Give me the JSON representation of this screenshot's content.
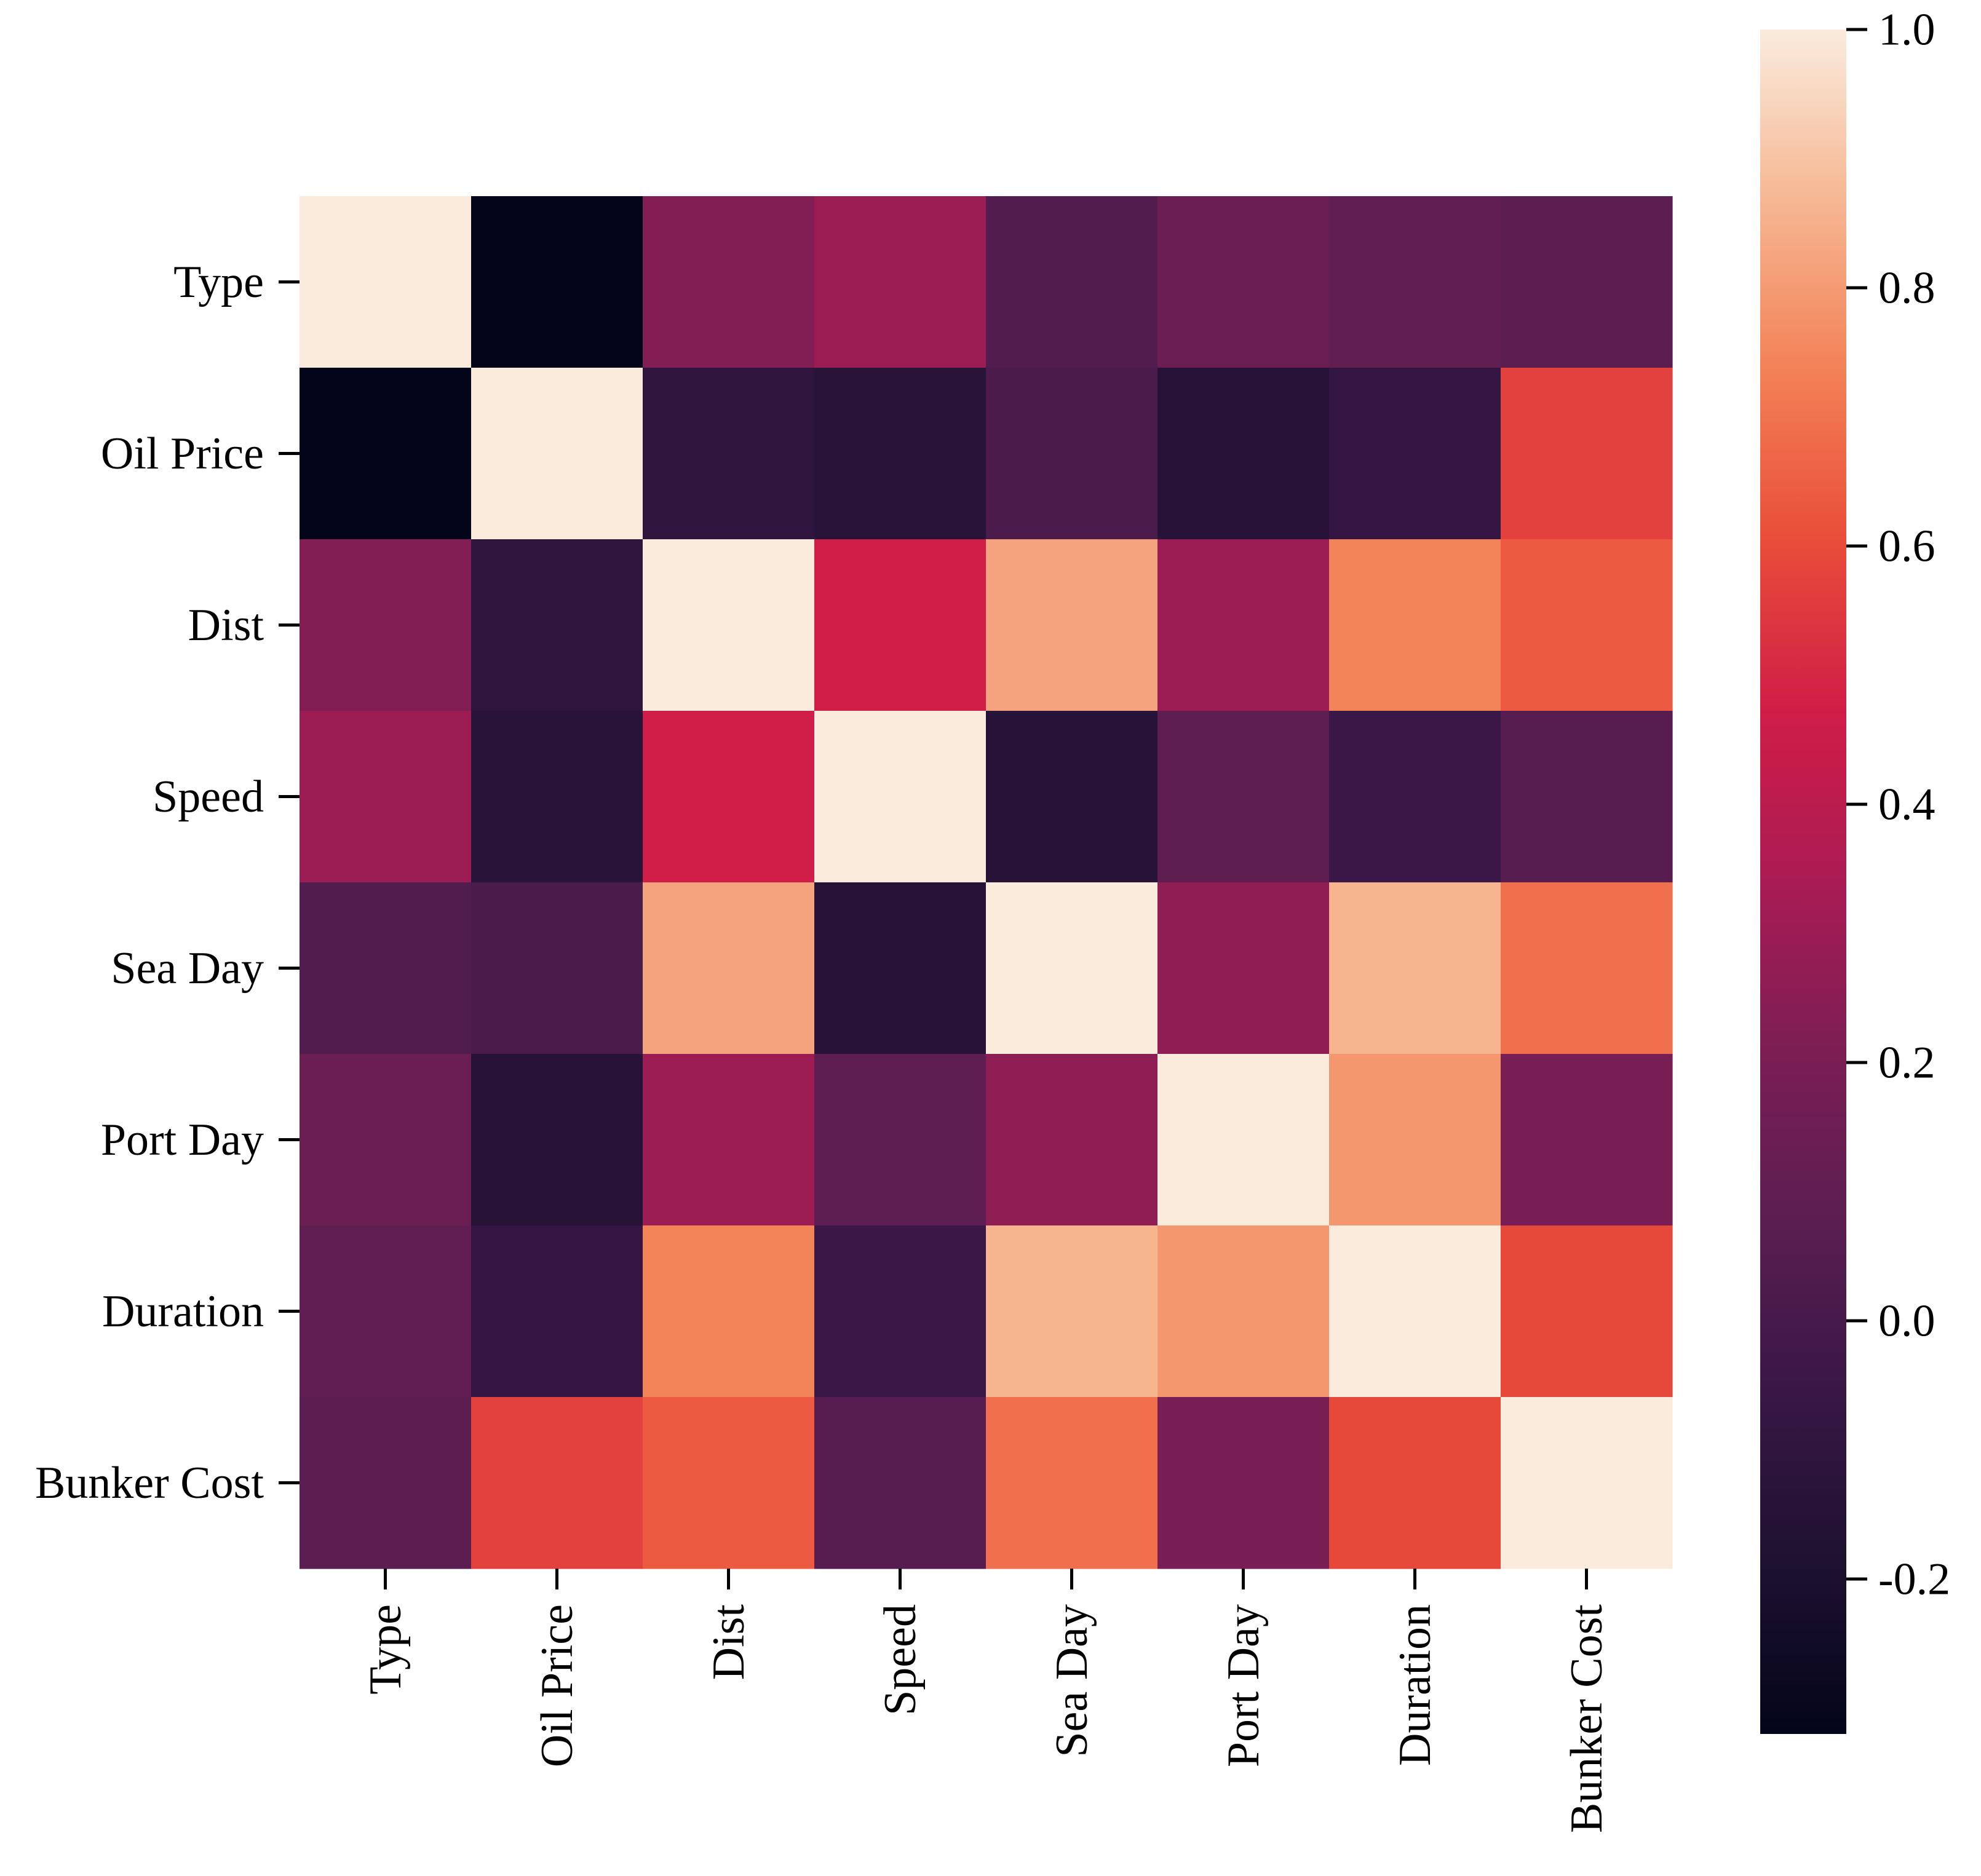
{
  "chart_data": {
    "type": "heatmap",
    "title": "",
    "xlabel": "",
    "ylabel": "",
    "rows": [
      "Type",
      "Oil Price",
      "Dist",
      "Speed",
      "Sea Day",
      "Port Day",
      "Duration",
      "Bunker Cost"
    ],
    "columns": [
      "Type",
      "Oil Price",
      "Dist",
      "Speed",
      "Sea Day",
      "Port Day",
      "Duration",
      "Bunker Cost"
    ],
    "values": [
      [
        1.0,
        -0.32,
        0.23,
        0.3,
        0.04,
        0.14,
        0.1,
        0.08
      ],
      [
        -0.32,
        1.0,
        -0.1,
        -0.13,
        0.01,
        -0.14,
        -0.07,
        0.57
      ],
      [
        0.23,
        -0.1,
        1.0,
        0.47,
        0.82,
        0.3,
        0.74,
        0.64
      ],
      [
        0.3,
        -0.13,
        0.47,
        1.0,
        -0.14,
        0.09,
        -0.05,
        0.06
      ],
      [
        0.04,
        0.01,
        0.82,
        -0.14,
        1.0,
        0.26,
        0.86,
        0.69
      ],
      [
        0.14,
        -0.14,
        0.3,
        0.09,
        0.26,
        1.0,
        0.79,
        0.2
      ],
      [
        0.1,
        -0.07,
        0.74,
        -0.05,
        0.86,
        0.79,
        1.0,
        0.59
      ],
      [
        0.08,
        0.57,
        0.64,
        0.06,
        0.69,
        0.2,
        0.59,
        1.0
      ]
    ],
    "colorscale": "rocket",
    "vmin": -0.32,
    "vmax": 1.0,
    "colorbar_ticks": [
      1.0,
      0.8,
      0.6,
      0.4,
      0.2,
      0.0,
      -0.2
    ],
    "colorbar_tick_labels": [
      "1.0",
      "0.8",
      "0.6",
      "0.4",
      "0.2",
      "0.0",
      "-0.2"
    ],
    "legend": "right colorbar"
  }
}
